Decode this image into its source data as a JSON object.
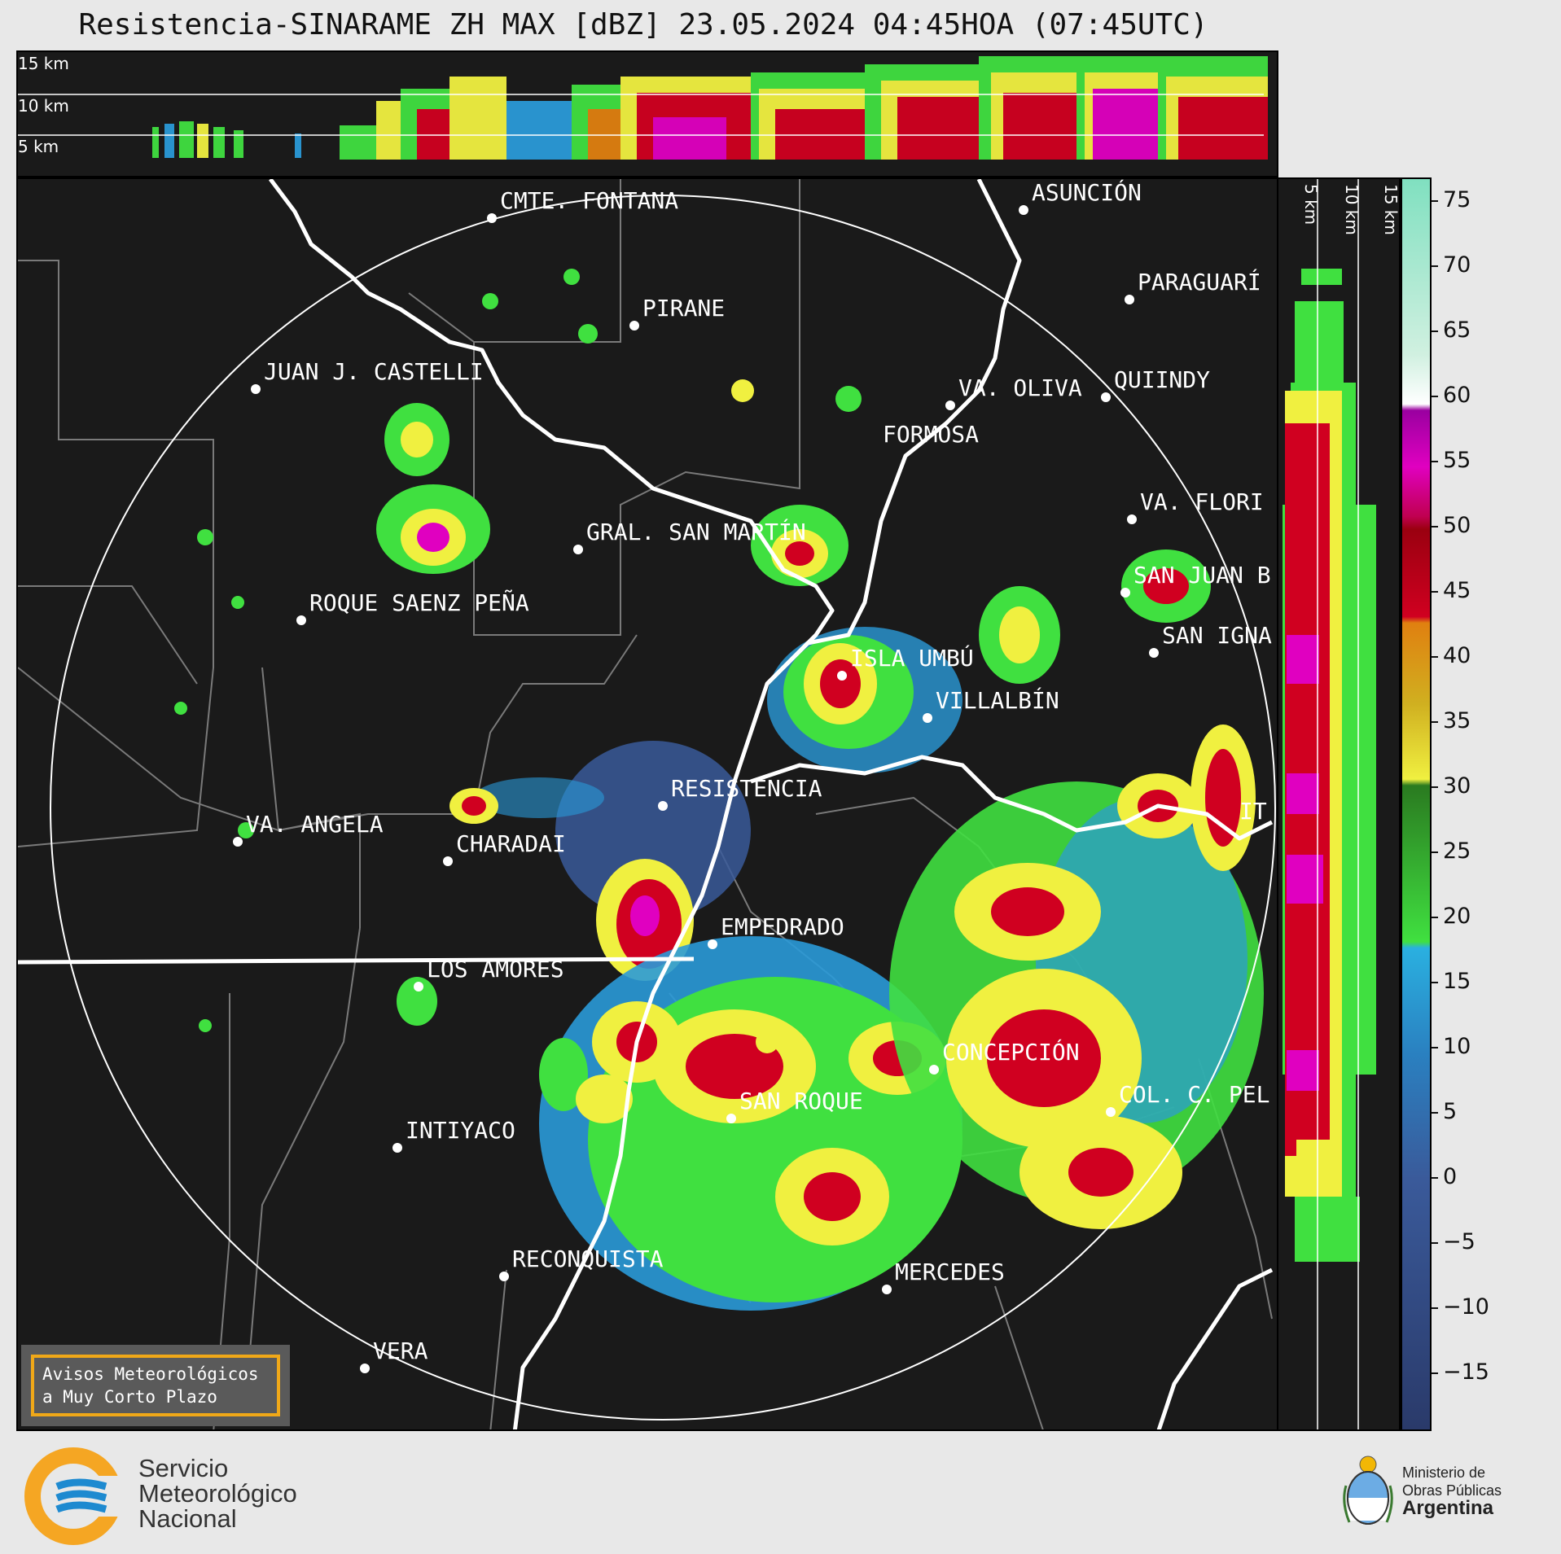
{
  "title": "Resistencia-SINARAME ZH MAX [dBZ] 23.05.2024 04:45HOA (07:45UTC)",
  "top_strip": {
    "altitude_labels": [
      "15 km",
      "10 km",
      "5 km"
    ]
  },
  "side_strip": {
    "altitude_labels": [
      "5 km",
      "10 km",
      "15 km"
    ]
  },
  "colorbar": {
    "unit": "dBZ",
    "ticks": [
      "75",
      "70",
      "65",
      "60",
      "55",
      "50",
      "45",
      "40",
      "35",
      "30",
      "25",
      "20",
      "15",
      "10",
      "5",
      "0",
      "−5",
      "−10",
      "−15"
    ],
    "min": -20,
    "max": 76,
    "colors": {
      "very_low": "#2a3a6a",
      "low": "#3a5a9a",
      "blue": "#2a9ad8",
      "green_light": "#40e040",
      "green_dark": "#2a7a20",
      "yellow": "#f0f040",
      "orange": "#e08010",
      "red": "#d00020",
      "dark_red": "#9a0010",
      "magenta": "#e000c0",
      "purple": "#9a00a0",
      "white": "#ffffff",
      "mint": "#80e0c0"
    }
  },
  "cities": [
    {
      "name": "CMTE. FONTANA"
    },
    {
      "name": "ASUNCIÓN"
    },
    {
      "name": "PARAGUARÍ"
    },
    {
      "name": "PIRANE"
    },
    {
      "name": "JUAN J. CASTELLI"
    },
    {
      "name": "VA. OLIVA"
    },
    {
      "name": "QUIINDY"
    },
    {
      "name": "FORMOSA"
    },
    {
      "name": "VA. FLORI"
    },
    {
      "name": "GRAL. SAN MARTÍN"
    },
    {
      "name": "SAN JUAN B"
    },
    {
      "name": "ROQUE SAENZ PEÑA"
    },
    {
      "name": "SAN IGNA"
    },
    {
      "name": "ISLA UMBÚ"
    },
    {
      "name": "VILLALBÍN"
    },
    {
      "name": "RESISTENCIA"
    },
    {
      "name": "VA. ANGELA"
    },
    {
      "name": "CHARADAI"
    },
    {
      "name": "IT"
    },
    {
      "name": "EMPEDRADO"
    },
    {
      "name": "LOS AMORES"
    },
    {
      "name": "CONCEPCIÓN"
    },
    {
      "name": "SAN ROQUE"
    },
    {
      "name": "COL. C. PEL"
    },
    {
      "name": "INTIYACO"
    },
    {
      "name": "RECONQUISTA"
    },
    {
      "name": "MERCEDES"
    },
    {
      "name": "VERA"
    }
  ],
  "warning_box": {
    "line1": "Avisos Meteorológicos",
    "line2": "a Muy Corto Plazo"
  },
  "smn_logo": {
    "line1": "Servicio",
    "line2": "Meteorológico",
    "line3": "Nacional"
  },
  "ministry_logo": {
    "line1": "Ministerio de",
    "line2": "Obras Públicas",
    "line3": "Argentina"
  }
}
